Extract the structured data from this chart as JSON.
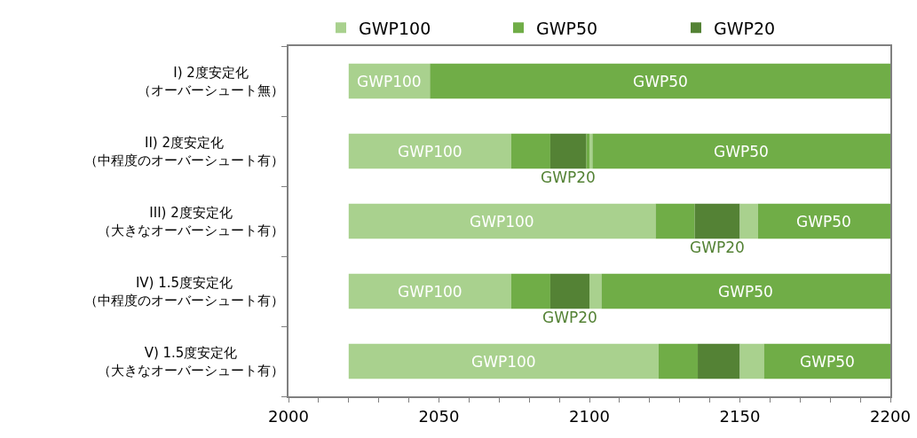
{
  "chart_data": {
    "type": "bar",
    "orientation": "horizontal",
    "legend": "top",
    "categories": [
      "I) 2度安定化（オーバーシュート無）",
      "II) 2度安定化（中程度のオーバーシュート有）",
      "III) 2度安定化（大きなオーバーシュート有）",
      "IV) 1.5度安定化（中程度のオーバーシュート有）",
      "V) 1.5度安定化（大きなオーバーシュート有）"
    ],
    "series": [
      {
        "name": "GWP100",
        "color": "#a9d18e",
        "base": [
          2020,
          2020,
          2020,
          2020,
          2020
        ],
        "values": [
          27,
          54,
          102,
          54,
          103
        ],
        "value_labels": [
          "GWP100",
          "GWP100",
          "GWP100",
          "GWP100",
          "GWP100"
        ]
      },
      {
        "name": "GWP50",
        "color": "#70ad47",
        "base": [
          null,
          2074,
          2122,
          2074,
          2123
        ],
        "values": [
          null,
          13,
          13,
          13,
          13
        ]
      },
      {
        "name": "GWP20",
        "color": "#548235",
        "base": [
          null,
          2087,
          2135,
          2087,
          2136
        ],
        "values": [
          null,
          12,
          15,
          13,
          14
        ],
        "value_labels": [
          null,
          "GWP20",
          "GWP20",
          "GWP20",
          null
        ]
      },
      {
        "color": "#70ad47",
        "base": [
          null,
          2099,
          null,
          null,
          null
        ],
        "values": [
          null,
          1,
          null,
          null,
          null
        ]
      },
      {
        "color": "#a9d18e",
        "base": [
          null,
          2100,
          2150,
          2100,
          2150
        ],
        "values": [
          null,
          1,
          6,
          4,
          8
        ]
      },
      {
        "color": "#70ad47",
        "base": [
          2047,
          2101,
          2156,
          2104,
          2158
        ],
        "values": [
          153,
          99,
          44,
          96,
          42
        ],
        "value_labels": [
          "GWP50",
          "GWP50",
          "GWP50",
          "GWP50",
          "GWP50"
        ]
      }
    ],
    "xlim": [
      2000,
      2200
    ],
    "xticks": [
      2000,
      {
        "value": 2010,
        "label": null
      },
      {
        "value": 2020,
        "label": null
      },
      {
        "value": 2030,
        "label": null
      },
      {
        "value": 2040,
        "label": null
      },
      2050,
      {
        "value": 2060,
        "label": null
      },
      {
        "value": 2070,
        "label": null
      },
      {
        "value": 2080,
        "label": null
      },
      {
        "value": 2090,
        "label": null
      },
      2100,
      {
        "value": 2110,
        "label": null
      },
      {
        "value": 2120,
        "label": null
      },
      {
        "value": 2130,
        "label": null
      },
      {
        "value": 2140,
        "label": null
      },
      2150,
      {
        "value": 2160,
        "label": null
      },
      {
        "value": 2170,
        "label": null
      },
      {
        "value": 2180,
        "label": null
      },
      {
        "value": 2190,
        "label": null
      },
      2200
    ]
  }
}
